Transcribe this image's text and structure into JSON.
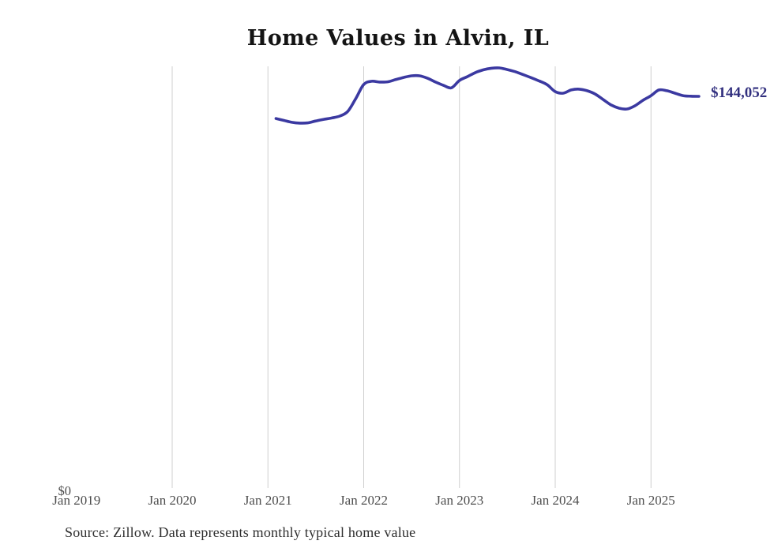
{
  "title": "Home Values in Alvin, IL",
  "source_note": "Source: Zillow. Data represents monthly typical home value",
  "annotation": {
    "label": "$144,052"
  },
  "y_axis": {
    "zero_label": "$0"
  },
  "colors": {
    "line": "#3b39a1",
    "annotation": "#32307f",
    "grid": "#cfcfcf",
    "axis_labels": "#4d4d4d",
    "title": "#141414",
    "source": "#2f2f2f"
  },
  "chart_data": {
    "type": "line",
    "title": "Home Values in Alvin, IL",
    "xlabel": "",
    "ylabel": "",
    "ylim": [
      0,
      155000
    ],
    "grid": "vertical-only",
    "legend": "none",
    "x_ticks": [
      "Jan 2019",
      "Jan 2020",
      "Jan 2021",
      "Jan 2022",
      "Jan 2023",
      "Jan 2024",
      "Jan 2025"
    ],
    "last_value_label": "$144,052",
    "series": [
      {
        "name": "Monthly typical home value",
        "x": [
          "2021-01",
          "2021-02",
          "2021-03",
          "2021-04",
          "2021-05",
          "2021-06",
          "2021-07",
          "2021-08",
          "2021-09",
          "2021-10",
          "2021-11",
          "2021-12",
          "2022-01",
          "2022-02",
          "2022-03",
          "2022-04",
          "2022-05",
          "2022-06",
          "2022-07",
          "2022-08",
          "2022-09",
          "2022-10",
          "2022-11",
          "2022-12",
          "2023-01",
          "2023-02",
          "2023-03",
          "2023-04",
          "2023-05",
          "2023-06",
          "2023-07",
          "2023-08",
          "2023-09",
          "2023-10",
          "2023-11",
          "2023-12",
          "2024-01",
          "2024-02",
          "2024-03",
          "2024-04",
          "2024-05",
          "2024-06",
          "2024-07",
          "2024-08",
          "2024-09",
          "2024-10",
          "2024-11",
          "2024-12",
          "2025-01",
          "2025-02",
          "2025-03",
          "2025-04",
          "2025-05",
          "2025-06"
        ],
        "values": [
          135900,
          135200,
          134500,
          134200,
          134300,
          135000,
          135600,
          136100,
          136800,
          138500,
          143200,
          148400,
          149600,
          149300,
          149400,
          150200,
          151000,
          151600,
          151600,
          150700,
          149300,
          148100,
          147200,
          149900,
          151300,
          152800,
          153800,
          154400,
          154500,
          153900,
          153100,
          152000,
          150900,
          149700,
          148300,
          145800,
          145200,
          146400,
          146700,
          146100,
          144900,
          142900,
          140900,
          139700,
          139400,
          140600,
          142600,
          144300,
          146400,
          146100,
          145200,
          144300,
          144100,
          144052
        ]
      }
    ]
  }
}
